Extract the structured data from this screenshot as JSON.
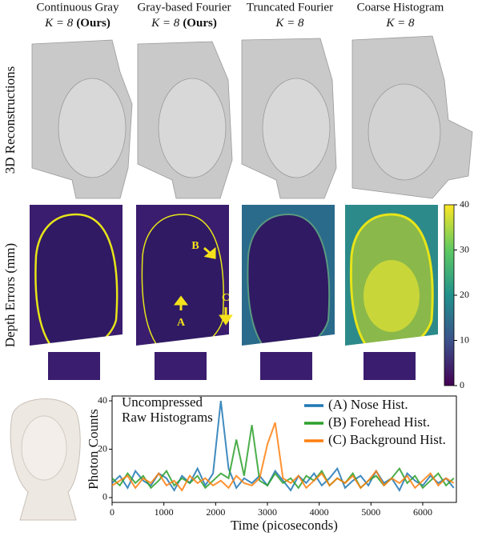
{
  "columns": [
    {
      "title": "Continuous Gray",
      "math": "K = 8",
      "note": "(Ours)"
    },
    {
      "title": "Gray-based Fourier",
      "math": "K = 8",
      "note": "(Ours)"
    },
    {
      "title": "Truncated Fourier",
      "math": "K = 8"
    },
    {
      "title": "Coarse Histogram",
      "math": "K = 8"
    }
  ],
  "row_labels": [
    "3D Reconstructions",
    "Depth Errors (mm)"
  ],
  "colorbar": {
    "ylim": [
      0,
      40
    ],
    "yticks": [
      0,
      10,
      20,
      30,
      40
    ]
  },
  "annotations": [
    "A",
    "B",
    "C"
  ],
  "chart_data": {
    "type": "line",
    "annotation": [
      "Uncompressed",
      "Raw Histograms"
    ],
    "x_label": "Time (picoseconds)",
    "y_label": "Photon Counts",
    "xlim": [
      0,
      6650
    ],
    "ylim": [
      -2,
      42
    ],
    "xticks": [
      0,
      1000,
      2000,
      3000,
      4000,
      5000,
      6000
    ],
    "yticks": [
      0,
      20,
      40
    ],
    "legend": "upper right",
    "x": [
      0,
      150,
      300,
      450,
      600,
      750,
      900,
      1050,
      1200,
      1350,
      1500,
      1650,
      1800,
      1950,
      2100,
      2250,
      2400,
      2550,
      2700,
      2850,
      3000,
      3150,
      3300,
      3450,
      3600,
      3750,
      3900,
      4050,
      4200,
      4350,
      4500,
      4650,
      4800,
      4950,
      5100,
      5250,
      5400,
      5550,
      5700,
      5850,
      6000,
      6150,
      6300,
      6450,
      6600
    ],
    "series": [
      {
        "name": "(A) Nose Hist.",
        "color": "#1f77b4",
        "values": [
          6,
          9,
          4,
          11,
          7,
          5,
          10,
          8,
          3,
          9,
          6,
          12,
          5,
          10,
          40,
          12,
          4,
          8,
          6,
          9,
          5,
          11,
          7,
          3,
          9,
          6,
          10,
          5,
          8,
          12,
          4,
          7,
          9,
          5,
          11,
          6,
          8,
          3,
          10,
          7,
          5,
          9,
          6,
          8,
          4
        ]
      },
      {
        "name": "(B) Forehead Hist.",
        "color": "#2ca02c",
        "values": [
          8,
          5,
          10,
          6,
          9,
          4,
          7,
          11,
          5,
          8,
          6,
          9,
          4,
          7,
          10,
          8,
          24,
          9,
          30,
          7,
          5,
          10,
          6,
          8,
          4,
          9,
          7,
          11,
          5,
          8,
          6,
          10,
          4,
          7,
          9,
          5,
          8,
          12,
          6,
          9,
          4,
          7,
          10,
          5,
          8
        ]
      },
      {
        "name": "(C) Background Hist.",
        "color": "#ff7f0e",
        "values": [
          5,
          7,
          9,
          4,
          8,
          6,
          10,
          5,
          7,
          3,
          9,
          6,
          8,
          5,
          7,
          4,
          9,
          6,
          5,
          8,
          22,
          31,
          8,
          6,
          9,
          4,
          7,
          10,
          5,
          8,
          6,
          9,
          4,
          7,
          11,
          5,
          8,
          6,
          9,
          4,
          7,
          10,
          5,
          8,
          6
        ]
      }
    ]
  }
}
